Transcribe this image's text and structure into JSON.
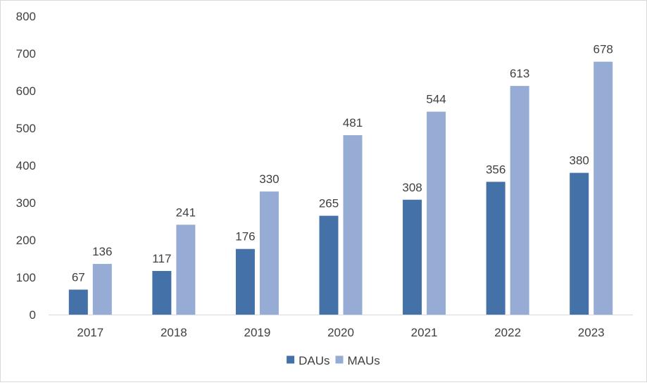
{
  "chart_data": {
    "type": "bar",
    "categories": [
      "2017",
      "2018",
      "2019",
      "2020",
      "2021",
      "2022",
      "2023"
    ],
    "series": [
      {
        "name": "DAUs",
        "values": [
          67,
          117,
          176,
          265,
          308,
          356,
          380
        ],
        "color": "#4472a8"
      },
      {
        "name": "MAUs",
        "values": [
          136,
          241,
          330,
          481,
          544,
          613,
          678
        ],
        "color": "#96acd4"
      }
    ],
    "ylim": [
      0,
      800
    ],
    "yticks": [
      "0",
      "100",
      "200",
      "300",
      "400",
      "500",
      "600",
      "700",
      "800"
    ],
    "grid": false,
    "legend": "bottom-center",
    "data_labels": true
  }
}
